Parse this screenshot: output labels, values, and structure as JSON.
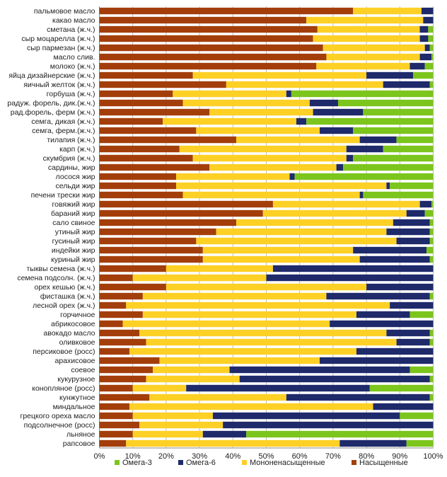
{
  "chart_data": {
    "type": "bar",
    "orientation": "horizontal",
    "stacked": true,
    "percent_stacked": true,
    "title": "",
    "xlabel": "",
    "ylabel": "",
    "xlim": [
      0,
      100
    ],
    "x_ticks": [
      "0%",
      "10%",
      "20%",
      "30%",
      "40%",
      "50%",
      "60%",
      "70%",
      "80%",
      "90%",
      "100%"
    ],
    "grid": true,
    "legend_position": "bottom",
    "categories": [
      "пальмовое масло",
      "какао масло",
      "сметана (ж.ч.)",
      "сыр моцарелла (ж.ч.)",
      "сыр пармезан (ж.ч.)",
      "масло слив.",
      "молоко (ж.ч.)",
      "яйца дизайнерские (ж.ч.)",
      "яичный желток (ж.ч.)",
      "горбуша (ж.ч.)",
      "радуж. форель, дик.(ж.ч.)",
      "рад.форель, ферм (ж.ч.)",
      "семга, дикая (ж.ч.)",
      "семга, ферм.(ж.ч.)",
      "тилапия (ж.ч.)",
      "карп (ж.ч.)",
      "скумбрия (ж.ч.)",
      "сардины, жир",
      "лосося жир",
      "сельди жир",
      "печени трески жир",
      "говяжий жир",
      "бараний жир",
      "сало свиное",
      "утиный жир",
      "гусиный жир",
      "индейки жир",
      "куриный жир",
      "тыквы семена (ж.ч.)",
      "семена подсолн. (ж.ч.)",
      "орех кешью (ж.ч.)",
      "фисташка (ж.ч.)",
      "лесной орех (ж.ч.)",
      "горчичное",
      "абрикосовое",
      "авокадо масло",
      "оливковое",
      "персиковое (росс)",
      "арахисовое",
      "соевое",
      "кукурузное",
      "конопляное (росс)",
      "кунжутное",
      "миндальное",
      "грецкого ореха масло",
      "подсолнечное (росс)",
      "льняное",
      "рапсовое"
    ],
    "series": [
      {
        "name": "Насыщенные",
        "color": "#a33e0b",
        "values": [
          76,
          62,
          65,
          64,
          67,
          68,
          65,
          28,
          38,
          22,
          25,
          33,
          19,
          29,
          41,
          24,
          28,
          33,
          23,
          23,
          25,
          52,
          49,
          41,
          35,
          29,
          31,
          31,
          20,
          10,
          20,
          13,
          8,
          13,
          7,
          12,
          14,
          9,
          18,
          16,
          14,
          10,
          15,
          9,
          10,
          12,
          10,
          8
        ]
      },
      {
        "name": "Мононенасыщенные",
        "color": "#fdd025",
        "values": [
          20.5,
          35,
          30.5,
          32,
          30.5,
          28,
          28,
          52,
          47,
          34,
          38,
          31,
          40,
          37,
          37,
          50,
          46,
          38,
          34,
          63,
          53,
          44,
          43,
          47,
          51,
          60,
          45,
          47,
          32,
          40,
          60,
          55,
          79,
          64,
          62,
          74,
          75,
          68,
          48,
          23,
          28,
          16,
          41,
          73,
          24,
          25,
          21,
          64
        ]
      },
      {
        "name": "Омега-6",
        "color": "#1f2a6b",
        "values": [
          3.5,
          3,
          2.5,
          2.5,
          1.5,
          3.5,
          4.5,
          14,
          14,
          1.5,
          8.5,
          15,
          3,
          10,
          11,
          11,
          2,
          2,
          1.5,
          1,
          1,
          3.5,
          5.5,
          11,
          13,
          10,
          22,
          21,
          48,
          50,
          20,
          31,
          13,
          16,
          31,
          13,
          10,
          23,
          34,
          54,
          57,
          55,
          43,
          18,
          56,
          63,
          13,
          20
        ]
      },
      {
        "name": "Омега-3",
        "color": "#7cc51d",
        "values": [
          0,
          0,
          1.5,
          1.5,
          1,
          0.5,
          2.5,
          6,
          1,
          42.5,
          28.5,
          21,
          38,
          24,
          11,
          15,
          24,
          27,
          41.5,
          13,
          21,
          0.5,
          2.5,
          1,
          1,
          1,
          2,
          1,
          0,
          0,
          0,
          1,
          0,
          7,
          0,
          1,
          1,
          0,
          0,
          7,
          1,
          19,
          1,
          0,
          10,
          0,
          56,
          8
        ]
      }
    ]
  }
}
